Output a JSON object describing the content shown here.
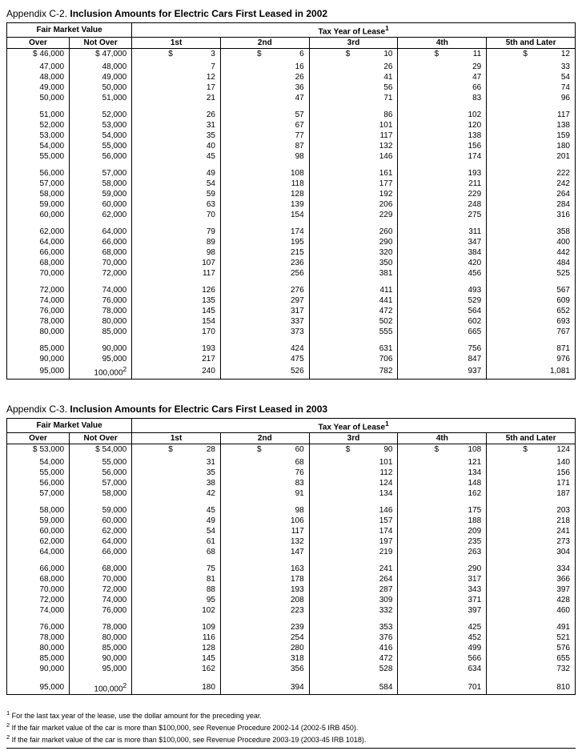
{
  "tables": [
    {
      "appendix": "Appendix C-2.",
      "title": "Inclusion Amounts for Electric Cars First Leased in 2002",
      "fmv_header": "Fair Market Value",
      "tax_header": "Tax Year of Lease",
      "tax_header_sup": "1",
      "col_over": "Over",
      "col_notover": "Not Over",
      "year_cols": [
        "1st",
        "2nd",
        "3rd",
        "4th",
        "5th and Later"
      ],
      "notover_sup_last": "2",
      "groups": [
        {
          "rows": [
            {
              "over": "46,000",
              "notover": "47,000",
              "y": [
                "3",
                "6",
                "10",
                "11",
                "12"
              ],
              "dollar": true
            },
            {
              "over": "47,000",
              "notover": "48,000",
              "y": [
                "7",
                "16",
                "26",
                "29",
                "33"
              ]
            },
            {
              "over": "48,000",
              "notover": "49,000",
              "y": [
                "12",
                "26",
                "41",
                "47",
                "54"
              ]
            },
            {
              "over": "49,000",
              "notover": "50,000",
              "y": [
                "17",
                "36",
                "56",
                "66",
                "74"
              ]
            },
            {
              "over": "50,000",
              "notover": "51,000",
              "y": [
                "21",
                "47",
                "71",
                "83",
                "96"
              ]
            }
          ]
        },
        {
          "rows": [
            {
              "over": "51,000",
              "notover": "52,000",
              "y": [
                "26",
                "57",
                "86",
                "102",
                "117"
              ]
            },
            {
              "over": "52,000",
              "notover": "53,000",
              "y": [
                "31",
                "67",
                "101",
                "120",
                "138"
              ]
            },
            {
              "over": "53,000",
              "notover": "54,000",
              "y": [
                "35",
                "77",
                "117",
                "138",
                "159"
              ]
            },
            {
              "over": "54,000",
              "notover": "55,000",
              "y": [
                "40",
                "87",
                "132",
                "156",
                "180"
              ]
            },
            {
              "over": "55,000",
              "notover": "56,000",
              "y": [
                "45",
                "98",
                "146",
                "174",
                "201"
              ]
            }
          ]
        },
        {
          "rows": [
            {
              "over": "56,000",
              "notover": "57,000",
              "y": [
                "49",
                "108",
                "161",
                "193",
                "222"
              ]
            },
            {
              "over": "57,000",
              "notover": "58,000",
              "y": [
                "54",
                "118",
                "177",
                "211",
                "242"
              ]
            },
            {
              "over": "58,000",
              "notover": "59,000",
              "y": [
                "59",
                "128",
                "192",
                "229",
                "264"
              ]
            },
            {
              "over": "59,000",
              "notover": "60,000",
              "y": [
                "63",
                "139",
                "206",
                "248",
                "284"
              ]
            },
            {
              "over": "60,000",
              "notover": "62,000",
              "y": [
                "70",
                "154",
                "229",
                "275",
                "316"
              ]
            }
          ]
        },
        {
          "rows": [
            {
              "over": "62,000",
              "notover": "64,000",
              "y": [
                "79",
                "174",
                "260",
                "311",
                "358"
              ]
            },
            {
              "over": "64,000",
              "notover": "66,000",
              "y": [
                "89",
                "195",
                "290",
                "347",
                "400"
              ]
            },
            {
              "over": "66,000",
              "notover": "68,000",
              "y": [
                "98",
                "215",
                "320",
                "384",
                "442"
              ]
            },
            {
              "over": "68,000",
              "notover": "70,000",
              "y": [
                "107",
                "236",
                "350",
                "420",
                "484"
              ]
            },
            {
              "over": "70,000",
              "notover": "72,000",
              "y": [
                "117",
                "256",
                "381",
                "456",
                "525"
              ]
            }
          ]
        },
        {
          "rows": [
            {
              "over": "72,000",
              "notover": "74,000",
              "y": [
                "126",
                "276",
                "411",
                "493",
                "567"
              ]
            },
            {
              "over": "74,000",
              "notover": "76,000",
              "y": [
                "135",
                "297",
                "441",
                "529",
                "609"
              ]
            },
            {
              "over": "76,000",
              "notover": "78,000",
              "y": [
                "145",
                "317",
                "472",
                "564",
                "652"
              ]
            },
            {
              "over": "78,000",
              "notover": "80,000",
              "y": [
                "154",
                "337",
                "502",
                "602",
                "693"
              ]
            },
            {
              "over": "80,000",
              "notover": "85,000",
              "y": [
                "170",
                "373",
                "555",
                "665",
                "767"
              ]
            }
          ]
        },
        {
          "rows": [
            {
              "over": "85,000",
              "notover": "90,000",
              "y": [
                "193",
                "424",
                "631",
                "756",
                "871"
              ]
            },
            {
              "over": "90,000",
              "notover": "95,000",
              "y": [
                "217",
                "475",
                "706",
                "847",
                "976"
              ]
            },
            {
              "over": "95,000",
              "notover": "100,000",
              "notover_sup": "2",
              "y": [
                "240",
                "526",
                "782",
                "937",
                "1,081"
              ]
            }
          ]
        }
      ]
    },
    {
      "appendix": "Appendix C-3.",
      "title": "Inclusion Amounts for Electric Cars First Leased in 2003",
      "fmv_header": "Fair Market Value",
      "tax_header": "Tax Year of Lease",
      "tax_header_sup": "1",
      "col_over": "Over",
      "col_notover": "Not Over",
      "year_cols": [
        "1st",
        "2nd",
        "3rd",
        "4th",
        "5th and Later"
      ],
      "groups": [
        {
          "rows": [
            {
              "over": "53,000",
              "notover": "54,000",
              "y": [
                "28",
                "60",
                "90",
                "108",
                "124"
              ],
              "dollar": true
            },
            {
              "over": "54,000",
              "notover": "55,000",
              "y": [
                "31",
                "68",
                "101",
                "121",
                "140"
              ]
            },
            {
              "over": "55,000",
              "notover": "56,000",
              "y": [
                "35",
                "76",
                "112",
                "134",
                "156"
              ]
            },
            {
              "over": "56,000",
              "notover": "57,000",
              "y": [
                "38",
                "83",
                "124",
                "148",
                "171"
              ]
            },
            {
              "over": "57,000",
              "notover": "58,000",
              "y": [
                "42",
                "91",
                "134",
                "162",
                "187"
              ]
            }
          ]
        },
        {
          "rows": [
            {
              "over": "58,000",
              "notover": "59,000",
              "y": [
                "45",
                "98",
                "146",
                "175",
                "203"
              ]
            },
            {
              "over": "59,000",
              "notover": "60,000",
              "y": [
                "49",
                "106",
                "157",
                "188",
                "218"
              ]
            },
            {
              "over": "60,000",
              "notover": "62,000",
              "y": [
                "54",
                "117",
                "174",
                "209",
                "241"
              ]
            },
            {
              "over": "62,000",
              "notover": "64,000",
              "y": [
                "61",
                "132",
                "197",
                "235",
                "273"
              ]
            },
            {
              "over": "64,000",
              "notover": "66,000",
              "y": [
                "68",
                "147",
                "219",
                "263",
                "304"
              ]
            }
          ]
        },
        {
          "rows": [
            {
              "over": "66,000",
              "notover": "68,000",
              "y": [
                "75",
                "163",
                "241",
                "290",
                "334"
              ]
            },
            {
              "over": "68,000",
              "notover": "70,000",
              "y": [
                "81",
                "178",
                "264",
                "317",
                "366"
              ]
            },
            {
              "over": "70,000",
              "notover": "72,000",
              "y": [
                "88",
                "193",
                "287",
                "343",
                "397"
              ]
            },
            {
              "over": "72,000",
              "notover": "74,000",
              "y": [
                "95",
                "208",
                "309",
                "371",
                "428"
              ]
            },
            {
              "over": "74,000",
              "notover": "76,000",
              "y": [
                "102",
                "223",
                "332",
                "397",
                "460"
              ]
            }
          ]
        },
        {
          "rows": [
            {
              "over": "76,000",
              "notover": "78,000",
              "y": [
                "109",
                "239",
                "353",
                "425",
                "491"
              ]
            },
            {
              "over": "78,000",
              "notover": "80,000",
              "y": [
                "116",
                "254",
                "376",
                "452",
                "521"
              ]
            },
            {
              "over": "80,000",
              "notover": "85,000",
              "y": [
                "128",
                "280",
                "416",
                "499",
                "576"
              ]
            },
            {
              "over": "85,000",
              "notover": "90,000",
              "y": [
                "145",
                "318",
                "472",
                "566",
                "655"
              ]
            },
            {
              "over": "90,000",
              "notover": "95,000",
              "y": [
                "162",
                "356",
                "528",
                "634",
                "732"
              ]
            }
          ]
        },
        {
          "rows": [
            {
              "over": "95,000",
              "notover": "100,000",
              "notover_sup": "2",
              "y": [
                "180",
                "394",
                "584",
                "701",
                "810"
              ]
            }
          ]
        }
      ]
    }
  ],
  "footnotes": [
    {
      "sup": "1",
      "text": "For the last tax year of the lease, use the dollar amount for the preceding year."
    },
    {
      "sup": "2",
      "text": "If the fair market value of the car is more than $100,000, see Revenue Procedure 2002-14 (2002-5 IRB 450)."
    },
    {
      "sup": "2",
      "text": "If the fair market value of the car is more than $100,000, see Revenue Procedure 2003-19 (2003-45 IRB 1018)."
    }
  ]
}
